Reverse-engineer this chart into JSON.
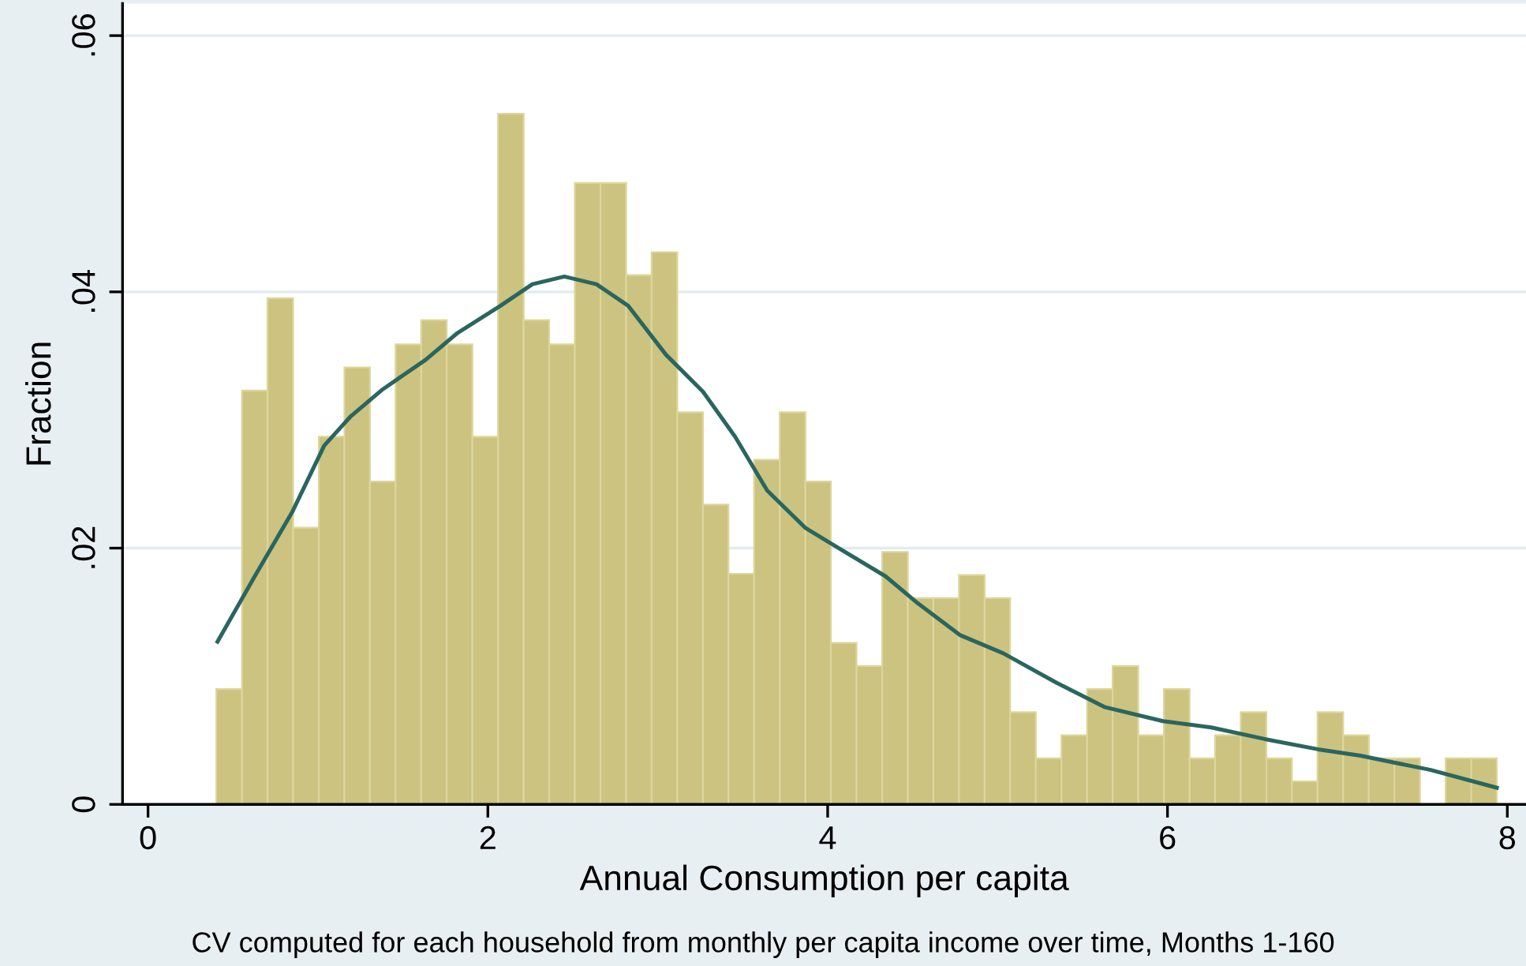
{
  "chart_data": {
    "type": "histogram",
    "xlabel": "Annual Consumption per capita",
    "ylabel": "Fraction",
    "annotations": [
      "CV computed for each household from monthly per capita income over time, Months 1-160"
    ],
    "xlim": [
      -0.15,
      8.11
    ],
    "ylim": [
      0,
      0.0625
    ],
    "xticks": [
      0,
      2,
      4,
      6,
      8
    ],
    "yticks": [
      0,
      {
        "value": 0.02,
        "label": ".02"
      },
      {
        "value": 0.04,
        "label": ".04"
      },
      {
        "value": 0.06,
        "label": ".06"
      }
    ],
    "grid": "y",
    "legend": false,
    "series": [
      {
        "color": "#cbc37f",
        "bins": [
          0.402,
          0.553,
          0.703,
          0.854,
          1.005,
          1.156,
          1.306,
          1.457,
          1.608,
          1.758,
          1.909,
          2.06,
          2.211,
          2.361,
          2.512,
          2.663,
          2.814,
          2.964,
          3.115,
          3.266,
          3.416,
          3.567,
          3.718,
          3.869,
          4.019,
          4.17,
          4.321,
          4.472,
          4.622,
          4.773,
          4.924,
          5.074,
          5.225,
          5.376,
          5.527,
          5.677,
          5.828,
          5.979,
          6.13,
          6.28,
          6.431,
          6.582,
          6.732,
          6.883,
          7.034,
          7.185,
          7.335,
          7.486,
          7.637,
          7.788,
          7.938
        ],
        "values": [
          0.009,
          0.0323,
          0.0395,
          0.0216,
          0.0287,
          0.0341,
          0.0252,
          0.0359,
          0.0378,
          0.0359,
          0.0287,
          0.0539,
          0.0378,
          0.0359,
          0.0485,
          0.0485,
          0.0413,
          0.0431,
          0.0306,
          0.0234,
          0.018,
          0.0269,
          0.0306,
          0.0252,
          0.0126,
          0.0108,
          0.0197,
          0.0161,
          0.0161,
          0.0179,
          0.0161,
          0.0072,
          0.0036,
          0.0054,
          0.009,
          0.0108,
          0.0054,
          0.009,
          0.0036,
          0.0054,
          0.0072,
          0.0036,
          0.0018,
          0.0072,
          0.0054,
          0.0036,
          0.0036,
          0,
          0.0036,
          0.0036
        ]
      },
      {
        "type": "line",
        "color": "#2a6660",
        "x": [
          0.409,
          0.628,
          0.848,
          1.037,
          1.194,
          1.382,
          1.634,
          1.822,
          2.073,
          2.262,
          2.45,
          2.639,
          2.827,
          3.048,
          3.267,
          3.455,
          3.644,
          3.867,
          4.027,
          4.341,
          4.53,
          4.781,
          5.032,
          5.346,
          5.629,
          5.974,
          6.258,
          6.572,
          6.886,
          7.136,
          7.357,
          7.545,
          7.938
        ],
        "values": [
          0.0127,
          0.0178,
          0.0228,
          0.028,
          0.0303,
          0.0324,
          0.0347,
          0.0368,
          0.0389,
          0.0406,
          0.0412,
          0.0406,
          0.0389,
          0.0351,
          0.0322,
          0.0287,
          0.0245,
          0.0216,
          0.0203,
          0.0178,
          0.0157,
          0.0132,
          0.0118,
          0.0095,
          0.0076,
          0.0065,
          0.006,
          0.0051,
          0.0043,
          0.0038,
          0.0032,
          0.0027,
          0.0013
        ]
      }
    ]
  }
}
